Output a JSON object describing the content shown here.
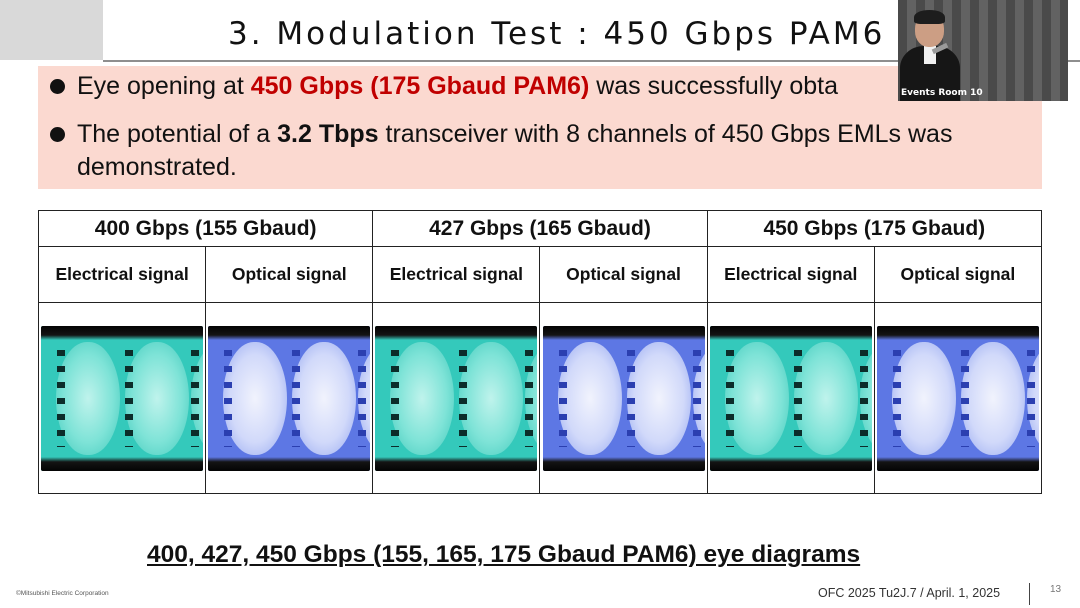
{
  "slide": {
    "title": "3. Modulation Test : 450 Gbps PAM6",
    "bullets": [
      {
        "before": "Eye opening at ",
        "highlight": "450 Gbps (175 Gbaud PAM6)",
        "after": " was successfully obta"
      },
      {
        "before": "The potential of a ",
        "highlight": "3.2 Tbps",
        "after": " transceiver with 8 channels of 450 Gbps EMLs was demonstrated."
      }
    ],
    "highlight_color": "#c00000",
    "summary_background": "#fbd9d0",
    "table": {
      "groups": [
        "400 Gbps (155 Gbaud)",
        "427 Gbps (165 Gbaud)",
        "450 Gbps (175 Gbaud)"
      ],
      "signal_types": [
        "Electrical signal",
        "Optical signal"
      ],
      "eye_colors": {
        "electrical": "#34c9bb",
        "optical": "#5d77e4"
      }
    },
    "caption": "400, 427, 450 Gbps (155, 165, 175 Gbaud PAM6) eye diagrams"
  },
  "video_overlay": {
    "room_label": "Events Room 10"
  },
  "footer": {
    "copyright": "©Mitsubishi Electric Corporation",
    "conference_info": "OFC 2025 Tu2J.7 / April. 1, 2025",
    "page_number": "13"
  }
}
